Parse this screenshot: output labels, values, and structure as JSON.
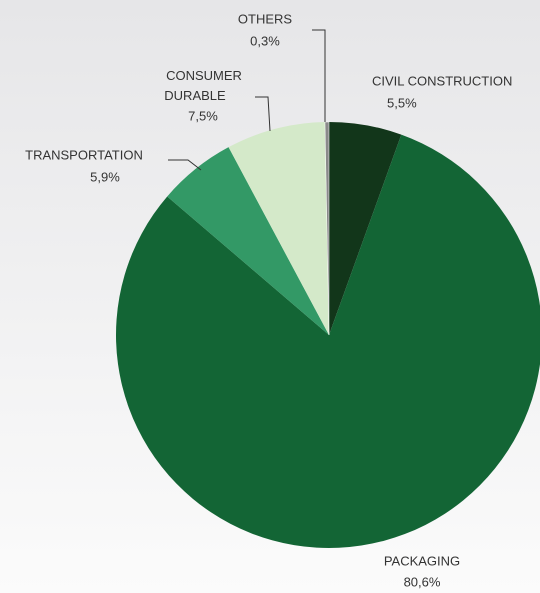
{
  "chart_data": {
    "type": "pie",
    "categories": [
      "CIVIL CONSTRUCTION",
      "PACKAGING",
      "TRANSPORTATION",
      "CONSUMER DURABLE",
      "OTHERS"
    ],
    "values": [
      5.5,
      80.6,
      5.9,
      7.5,
      0.3
    ],
    "value_labels": [
      "5,5%",
      "80,6%",
      "5,9%",
      "7,5%",
      "0,3%"
    ],
    "colors": [
      "#12361a",
      "#136535",
      "#339966",
      "#d4e9c9",
      "#8a8a8a"
    ]
  }
}
